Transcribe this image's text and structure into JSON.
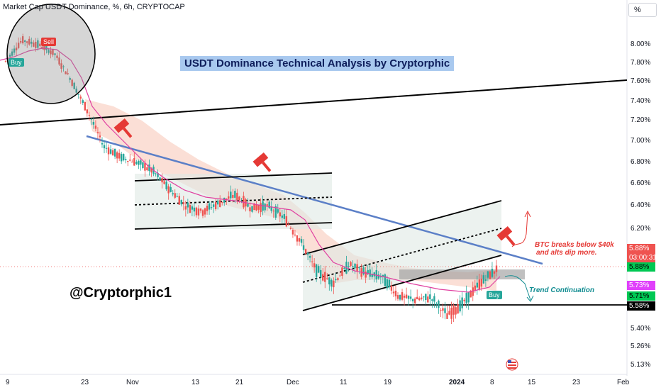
{
  "header": {
    "title": "Market Cap USDT Dominance, %, 6h, CRYPTOCAP"
  },
  "annotations": {
    "title": "USDT Dominance Technical Analysis by Cryptorphic",
    "handle": "@Cryptorphic1",
    "btc_note_line1": "BTC breaks below $40k",
    "btc_note_line2": "and alts dip more.",
    "trend_note": "Trend Continuation",
    "sell_label": "Sell",
    "buy_label_1": "Buy",
    "buy_label_2": "Buy"
  },
  "axis": {
    "unit_button": "%",
    "y_ticks": [
      "8.00%",
      "7.80%",
      "7.60%",
      "7.40%",
      "7.20%",
      "7.00%",
      "6.80%",
      "6.60%",
      "6.40%",
      "6.20%",
      "5.40%",
      "5.26%",
      "5.13%"
    ],
    "x_ticks": [
      "9",
      "23",
      "Nov",
      "13",
      "21",
      "Dec",
      "11",
      "19",
      "2024",
      "8",
      "15",
      "23",
      "Feb"
    ]
  },
  "price_tags": {
    "last": "5.88%",
    "countdown": "03:00:31",
    "ema": "5.88%",
    "level_purple": "5.73%",
    "level_green": "5.71%",
    "support": "5.58%"
  },
  "colors": {
    "candle_up": "#26a69a",
    "candle_down": "#ef5350",
    "ma_line": "#e040a0",
    "trendline": "#5b7fc7",
    "channel": "#000000",
    "cloud": "#f7c4b5",
    "accent_red": "#e53935",
    "accent_teal": "#118c91"
  },
  "chart_data": {
    "type": "candlestick",
    "title": "Market Cap USDT Dominance, %, 6h, CRYPTOCAP",
    "ylabel": "%",
    "y_range": [
      5.1,
      8.2
    ],
    "x_ticks": [
      "9",
      "23",
      "Nov",
      "13",
      "21",
      "Dec",
      "11",
      "19",
      "2024",
      "8",
      "15",
      "23",
      "Feb"
    ],
    "close_path": [
      {
        "x": "Oct 9",
        "y": 7.82
      },
      {
        "x": "Oct 12",
        "y": 8.05
      },
      {
        "x": "Oct 14",
        "y": 8.0
      },
      {
        "x": "Oct 17",
        "y": 7.9
      },
      {
        "x": "Oct 20",
        "y": 7.62
      },
      {
        "x": "Oct 23",
        "y": 7.3
      },
      {
        "x": "Oct 25",
        "y": 6.95
      },
      {
        "x": "Oct 28",
        "y": 6.85
      },
      {
        "x": "Oct 31",
        "y": 6.8
      },
      {
        "x": "Nov 4",
        "y": 6.72
      },
      {
        "x": "Nov 8",
        "y": 6.55
      },
      {
        "x": "Nov 11",
        "y": 6.4
      },
      {
        "x": "Nov 14",
        "y": 6.35
      },
      {
        "x": "Nov 18",
        "y": 6.42
      },
      {
        "x": "Nov 21",
        "y": 6.5
      },
      {
        "x": "Nov 25",
        "y": 6.38
      },
      {
        "x": "Nov 29",
        "y": 6.4
      },
      {
        "x": "Dec 2",
        "y": 6.3
      },
      {
        "x": "Dec 4",
        "y": 6.1
      },
      {
        "x": "Dec 6",
        "y": 5.85
      },
      {
        "x": "Dec 9",
        "y": 5.75
      },
      {
        "x": "Dec 12",
        "y": 5.9
      },
      {
        "x": "Dec 16",
        "y": 5.83
      },
      {
        "x": "Dec 19",
        "y": 5.8
      },
      {
        "x": "Dec 22",
        "y": 5.65
      },
      {
        "x": "Dec 26",
        "y": 5.62
      },
      {
        "x": "Dec 29",
        "y": 5.64
      },
      {
        "x": "Jan 1",
        "y": 5.5
      },
      {
        "x": "Jan 3",
        "y": 5.6
      },
      {
        "x": "Jan 5",
        "y": 5.75
      },
      {
        "x": "Jan 7",
        "y": 5.86
      }
    ],
    "levels": [
      {
        "name": "support",
        "value": 5.58
      },
      {
        "name": "level_green",
        "value": 5.71
      },
      {
        "name": "level_purple",
        "value": 5.73
      },
      {
        "name": "last",
        "value": 5.88
      }
    ],
    "grid": false,
    "legend": "none"
  }
}
